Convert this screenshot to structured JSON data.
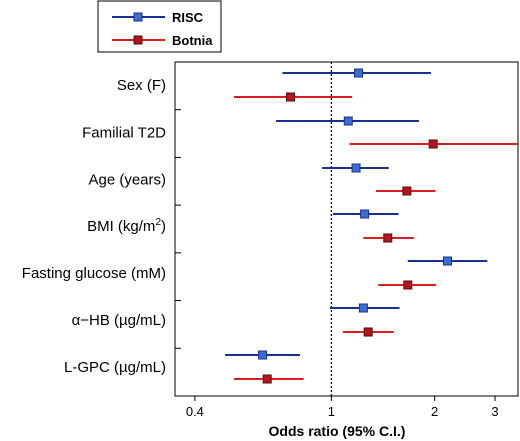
{
  "chart_data": {
    "type": "forest",
    "xlabel": "Odds ratio (95% C.I.)",
    "xscale": "log",
    "xlim": [
      0.35,
      3.5
    ],
    "xticks": [
      "0.4",
      "1",
      "2",
      "3"
    ],
    "reference_line": 1,
    "legend_position": "top-left",
    "variables": [
      {
        "label": "Sex (F)",
        "sup": "",
        "label_suffix": ""
      },
      {
        "label": "Familial T2D",
        "sup": "",
        "label_suffix": ""
      },
      {
        "label": "Age (years)",
        "sup": "",
        "label_suffix": ""
      },
      {
        "label": "BMI (kg/m",
        "sup": "2",
        "label_suffix": ")"
      },
      {
        "label": "Fasting glucose (mM)",
        "sup": "",
        "label_suffix": ""
      },
      {
        "label": "α−HB (µg/mL)",
        "sup": "",
        "label_suffix": ""
      },
      {
        "label": "L-GPC (µg/mL)",
        "sup": "",
        "label_suffix": ""
      }
    ],
    "series": [
      {
        "name": "RISC",
        "color": "#1a2f96",
        "marker_color": "#3c6ed2",
        "or": [
          1.2,
          1.12,
          1.18,
          1.25,
          2.18,
          1.24,
          0.63
        ],
        "low": [
          0.72,
          0.69,
          0.94,
          1.01,
          1.67,
          0.99,
          0.49
        ],
        "high": [
          1.95,
          1.8,
          1.47,
          1.57,
          2.85,
          1.58,
          0.81
        ]
      },
      {
        "name": "Botnia",
        "color": "#dc1e1e",
        "marker_color": "#b4141e",
        "or": [
          0.76,
          1.98,
          1.66,
          1.46,
          1.67,
          1.28,
          0.65
        ],
        "low": [
          0.52,
          1.13,
          1.35,
          1.24,
          1.37,
          1.08,
          0.52
        ],
        "high": [
          1.15,
          3.5,
          2.01,
          1.74,
          2.02,
          1.52,
          0.83
        ]
      }
    ]
  }
}
